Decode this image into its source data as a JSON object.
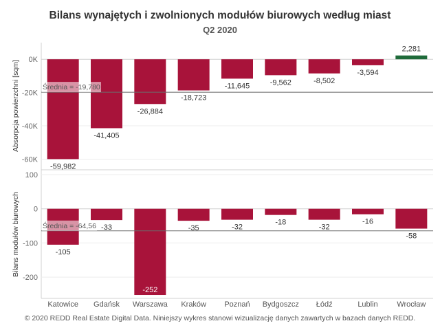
{
  "title": "Bilans wynajętych i zwolnionych modułów biurowych według miast",
  "subtitle": "Q2 2020",
  "footer": "© 2020 REDD Real Estate Digital Data. Niniejszy wykres stanowi wizualizację danych zawartych w bazach danych REDD.",
  "colors": {
    "negative": "#a8133a",
    "positive": "#1f6b3a",
    "reference_line": "#6b6b6b"
  },
  "chart_data": [
    {
      "type": "bar",
      "ylabel": "Absorpcja powierzchni [sqm]",
      "ylim": [
        -66000,
        10000
      ],
      "yticks": [
        0,
        -20000,
        -40000,
        -60000
      ],
      "ytick_labels": [
        "0K",
        "-20K",
        "-40K",
        "-60K"
      ],
      "categories": [
        "Katowice",
        "Gdańsk",
        "Warszawa",
        "Kraków",
        "Poznań",
        "Bydgoszcz",
        "Łódź",
        "Lublin",
        "Wrocław"
      ],
      "values": [
        -59982,
        -41405,
        -26884,
        -18723,
        -11645,
        -9562,
        -8502,
        -3594,
        2281
      ],
      "value_labels": [
        "-59,982",
        "-41,405",
        "-26,884",
        "-18,723",
        "-11,645",
        "-9,562",
        "-8,502",
        "-3,594",
        "2,281"
      ],
      "reference_line": {
        "value": -19780,
        "label": "Średnia = -19,780"
      }
    },
    {
      "type": "bar",
      "ylabel": "Bilans modułów biurowych",
      "ylim": [
        -262,
        112
      ],
      "yticks": [
        100,
        0,
        -100,
        -200
      ],
      "ytick_labels": [
        "100",
        "0",
        "-100",
        "-200"
      ],
      "categories": [
        "Katowice",
        "Gdańsk",
        "Warszawa",
        "Kraków",
        "Poznań",
        "Bydgoszcz",
        "Łódź",
        "Lublin",
        "Wrocław"
      ],
      "values": [
        -105,
        -33,
        -252,
        -35,
        -32,
        -18,
        -32,
        -16,
        -58
      ],
      "value_labels": [
        "-105",
        "-33",
        "-252",
        "-35",
        "-32",
        "-18",
        "-32",
        "-16",
        "-58"
      ],
      "reference_line": {
        "value": -64.56,
        "label": "Średnia = -64,56"
      }
    }
  ]
}
